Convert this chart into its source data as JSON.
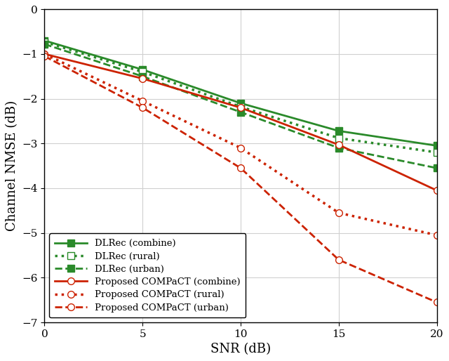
{
  "snr": [
    0,
    5,
    10,
    15,
    20
  ],
  "DLRec_combine": [
    -0.7,
    -1.35,
    -2.1,
    -2.72,
    -3.05
  ],
  "DLRec_rural": [
    -0.73,
    -1.4,
    -2.18,
    -2.88,
    -3.2
  ],
  "DLRec_urban": [
    -0.78,
    -1.5,
    -2.3,
    -3.1,
    -3.55
  ],
  "COMPaCT_combine": [
    -1.0,
    -1.55,
    -2.2,
    -3.03,
    -4.05
  ],
  "COMPaCT_rural": [
    -1.0,
    -2.05,
    -3.1,
    -4.55,
    -5.05
  ],
  "COMPaCT_urban": [
    -1.05,
    -2.2,
    -3.55,
    -5.6,
    -6.55
  ],
  "green_color": "#2a8a2a",
  "red_color": "#cc2200",
  "xlabel": "SNR (dB)",
  "ylabel": "Channel NMSE (dB)",
  "ylim": [
    -7,
    0
  ],
  "xlim": [
    0,
    20
  ],
  "xticks": [
    0,
    5,
    10,
    15,
    20
  ],
  "yticks": [
    0,
    -1,
    -2,
    -3,
    -4,
    -5,
    -6,
    -7
  ],
  "legend_labels": [
    "DLRec (combine)",
    "DLRec (rural)",
    "DLRec (urban)",
    "Proposed COMPaCT (combine)",
    "Proposed COMPaCT (rural)",
    "Proposed COMPaCT (urban)"
  ]
}
